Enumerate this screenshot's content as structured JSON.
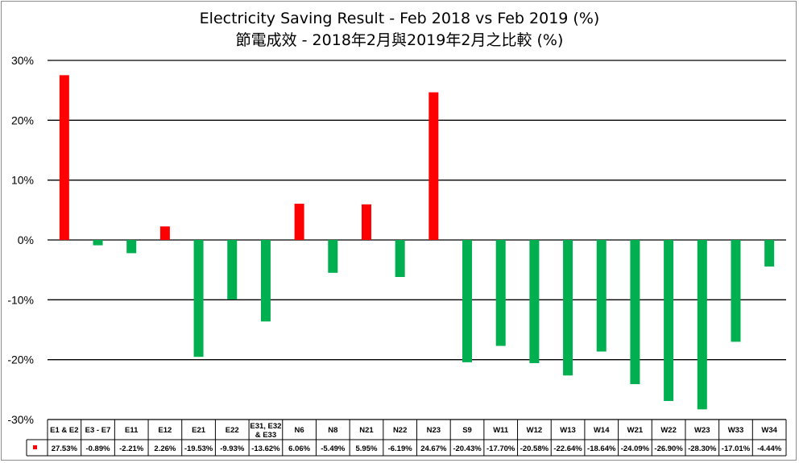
{
  "chart_data": {
    "type": "bar",
    "title": "Electricity Saving Result - Feb 2018 vs Feb 2019 (%)",
    "subtitle": "節電成效 - 2018年2月與2019年2月之比較 (%)",
    "ylim": [
      -30,
      30
    ],
    "yticks": [
      "30%",
      "20%",
      "10%",
      "0%",
      "-10%",
      "-20%",
      "-30%"
    ],
    "ytick_values": [
      30,
      20,
      10,
      0,
      -10,
      -20,
      -30
    ],
    "grid": true,
    "categories": [
      "E1 & E2",
      "E3 - E7",
      "E11",
      "E12",
      "E21",
      "E22",
      "E31, E32 & E33",
      "N6",
      "N8",
      "N21",
      "N22",
      "N23",
      "S9",
      "W11",
      "W12",
      "W13",
      "W14",
      "W21",
      "W22",
      "W23",
      "W33",
      "W34"
    ],
    "values": [
      27.53,
      -0.89,
      -2.21,
      2.26,
      -19.53,
      -9.93,
      -13.62,
      6.06,
      -5.49,
      5.95,
      -6.19,
      24.67,
      -20.43,
      -17.7,
      -20.58,
      -22.64,
      -18.64,
      -24.09,
      -26.9,
      -28.3,
      -17.01,
      -4.44
    ],
    "value_labels": [
      "27.53%",
      "-0.89%",
      "-2.21%",
      "2.26%",
      "-19.53%",
      "-9.93%",
      "-13.62%",
      "6.06%",
      "-5.49%",
      "5.95%",
      "-6.19%",
      "24.67%",
      "-20.43%",
      "-17.70%",
      "-20.58%",
      "-22.64%",
      "-18.64%",
      "-24.09%",
      "-26.90%",
      "-28.30%",
      "-17.01%",
      "-4.44%"
    ],
    "colors": {
      "positive": "#ff0000",
      "negative": "#00b050",
      "grid": "#000000",
      "legend_key": "#ff0000"
    },
    "data_table": true
  }
}
